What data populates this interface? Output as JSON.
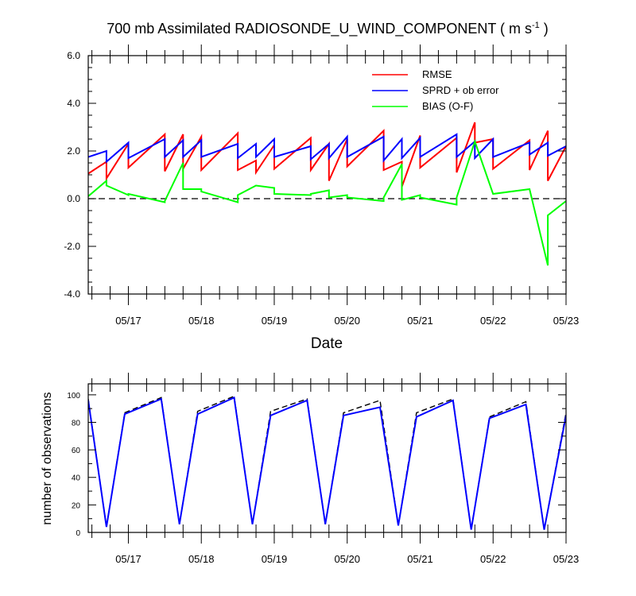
{
  "chart_data": [
    {
      "type": "line",
      "title_main": "700 mb Assimilated RADIOSONDE_U_WIND_COMPONENT ( m s",
      "title_sup": "-1",
      "title_end": " )",
      "xlabel": "Date",
      "ylabel": "",
      "xlim": [
        0,
        6.55
      ],
      "ylim": [
        -4,
        6
      ],
      "ytick_labels": [
        "-4.0",
        "-2.0",
        "0.0",
        "2.0",
        "4.0",
        "6.0"
      ],
      "ytick_values": [
        -4,
        -2,
        0,
        2,
        4,
        6
      ],
      "xtick_labels": [
        "05/17",
        "05/18",
        "05/19",
        "05/20",
        "05/21",
        "05/22",
        "05/23"
      ],
      "xtick_values": [
        0.55,
        1.55,
        2.55,
        3.55,
        4.55,
        5.55,
        6.55
      ],
      "reference_line": {
        "value": 0,
        "style": "dashed",
        "color": "#000000"
      },
      "legend_position": "top-right",
      "series": [
        {
          "name": "RMSE",
          "color": "#ff0000",
          "x": [
            0,
            0.25,
            0.25,
            0.55,
            0.55,
            1.05,
            1.05,
            1.3,
            1.3,
            1.55,
            1.55,
            2.05,
            2.05,
            2.3,
            2.3,
            2.55,
            2.55,
            3.05,
            3.05,
            3.3,
            3.3,
            3.55,
            3.55,
            4.05,
            4.05,
            4.3,
            4.3,
            4.55,
            4.55,
            5.05,
            5.05,
            5.3,
            5.3,
            5.55,
            5.55,
            6.05,
            6.05,
            6.3,
            6.3,
            6.55
          ],
          "y": [
            1.05,
            1.55,
            0.85,
            2.3,
            1.3,
            2.7,
            1.15,
            2.7,
            1.25,
            2.6,
            1.2,
            2.75,
            1.2,
            1.6,
            1.1,
            2.25,
            1.25,
            2.55,
            1.2,
            2.3,
            0.75,
            2.5,
            1.35,
            2.85,
            1.2,
            1.55,
            0.5,
            2.65,
            1.3,
            2.55,
            1.1,
            3.2,
            2.35,
            2.5,
            1.25,
            2.45,
            1.2,
            2.85,
            0.75,
            2.2
          ]
        },
        {
          "name": "SPRD + ob error",
          "color": "#0000ff",
          "x": [
            0,
            0.25,
            0.25,
            0.55,
            0.55,
            1.05,
            1.05,
            1.3,
            1.3,
            1.55,
            1.55,
            2.05,
            2.05,
            2.3,
            2.3,
            2.55,
            2.55,
            3.05,
            3.05,
            3.3,
            3.3,
            3.55,
            3.55,
            4.05,
            4.05,
            4.3,
            4.3,
            4.55,
            4.55,
            5.05,
            5.05,
            5.3,
            5.3,
            5.55,
            5.55,
            6.05,
            6.05,
            6.3,
            6.3,
            6.55
          ],
          "y": [
            1.75,
            2.0,
            1.55,
            2.35,
            1.7,
            2.5,
            1.75,
            2.45,
            1.75,
            2.45,
            1.75,
            2.3,
            1.7,
            2.3,
            1.75,
            2.5,
            1.75,
            2.2,
            1.65,
            2.3,
            1.7,
            2.6,
            1.75,
            2.6,
            1.6,
            2.5,
            1.7,
            2.55,
            1.75,
            2.7,
            1.75,
            2.4,
            1.7,
            2.5,
            1.75,
            2.35,
            1.85,
            2.35,
            1.8,
            2.2
          ]
        },
        {
          "name": "BIAS (O-F)",
          "color": "#00ff00",
          "x": [
            0,
            0.25,
            0.25,
            0.55,
            0.55,
            1.05,
            1.05,
            1.3,
            1.3,
            1.55,
            1.55,
            2.05,
            2.05,
            2.3,
            2.3,
            2.55,
            2.55,
            3.05,
            3.05,
            3.3,
            3.3,
            3.55,
            3.55,
            4.05,
            4.05,
            4.3,
            4.3,
            4.55,
            4.55,
            5.05,
            5.05,
            5.3,
            5.3,
            5.55,
            5.55,
            6.05,
            6.05,
            6.3,
            6.3,
            6.55
          ],
          "y": [
            0.1,
            0.75,
            0.55,
            0.15,
            0.2,
            -0.15,
            -0.1,
            1.5,
            0.4,
            0.4,
            0.3,
            -0.15,
            0.15,
            0.55,
            0.55,
            0.45,
            0.2,
            0.15,
            0.2,
            0.35,
            0.05,
            0.15,
            0.05,
            -0.1,
            0.05,
            1.45,
            -0.05,
            0.15,
            0.05,
            -0.25,
            0.05,
            2.4,
            2.4,
            0.2,
            0.2,
            0.4,
            0.4,
            -2.8,
            -0.7,
            -0.1
          ]
        }
      ]
    },
    {
      "type": "line",
      "title": "",
      "xlabel": "",
      "ylabel": "number of observations",
      "xlim": [
        0,
        6.55
      ],
      "ylim": [
        0,
        108
      ],
      "ytick_labels": [
        "0",
        "20",
        "40",
        "60",
        "80",
        "100"
      ],
      "ytick_values": [
        0,
        20,
        40,
        60,
        80,
        100
      ],
      "xtick_labels": [
        "05/17",
        "05/18",
        "05/19",
        "05/20",
        "05/21",
        "05/22",
        "05/23"
      ],
      "xtick_values": [
        0.55,
        1.55,
        2.55,
        3.55,
        4.55,
        5.55,
        6.55
      ],
      "series": [
        {
          "color": "#000000",
          "style": "dashed",
          "x": [
            0,
            0.25,
            0.5,
            1.0,
            1.25,
            1.5,
            2.0,
            2.25,
            2.5,
            3.0,
            3.25,
            3.5,
            4.0,
            4.25,
            4.5,
            5.0,
            5.25,
            5.5,
            6.0,
            6.25,
            6.55
          ],
          "y": [
            97,
            4,
            87,
            98,
            6,
            88,
            99,
            6,
            88,
            97,
            6,
            87,
            96,
            5,
            87,
            97,
            2,
            84,
            95,
            2,
            87
          ]
        },
        {
          "color": "#0000ff",
          "style": "solid",
          "x": [
            0,
            0.25,
            0.5,
            1.0,
            1.25,
            1.5,
            2.0,
            2.25,
            2.5,
            3.0,
            3.25,
            3.5,
            4.0,
            4.25,
            4.5,
            5.0,
            5.25,
            5.5,
            6.0,
            6.25,
            6.55
          ],
          "y": [
            96,
            4,
            86,
            97,
            6,
            86,
            98,
            6,
            85,
            96,
            6,
            85,
            91,
            5,
            84,
            96,
            2,
            83,
            93,
            2,
            85
          ]
        }
      ]
    }
  ]
}
